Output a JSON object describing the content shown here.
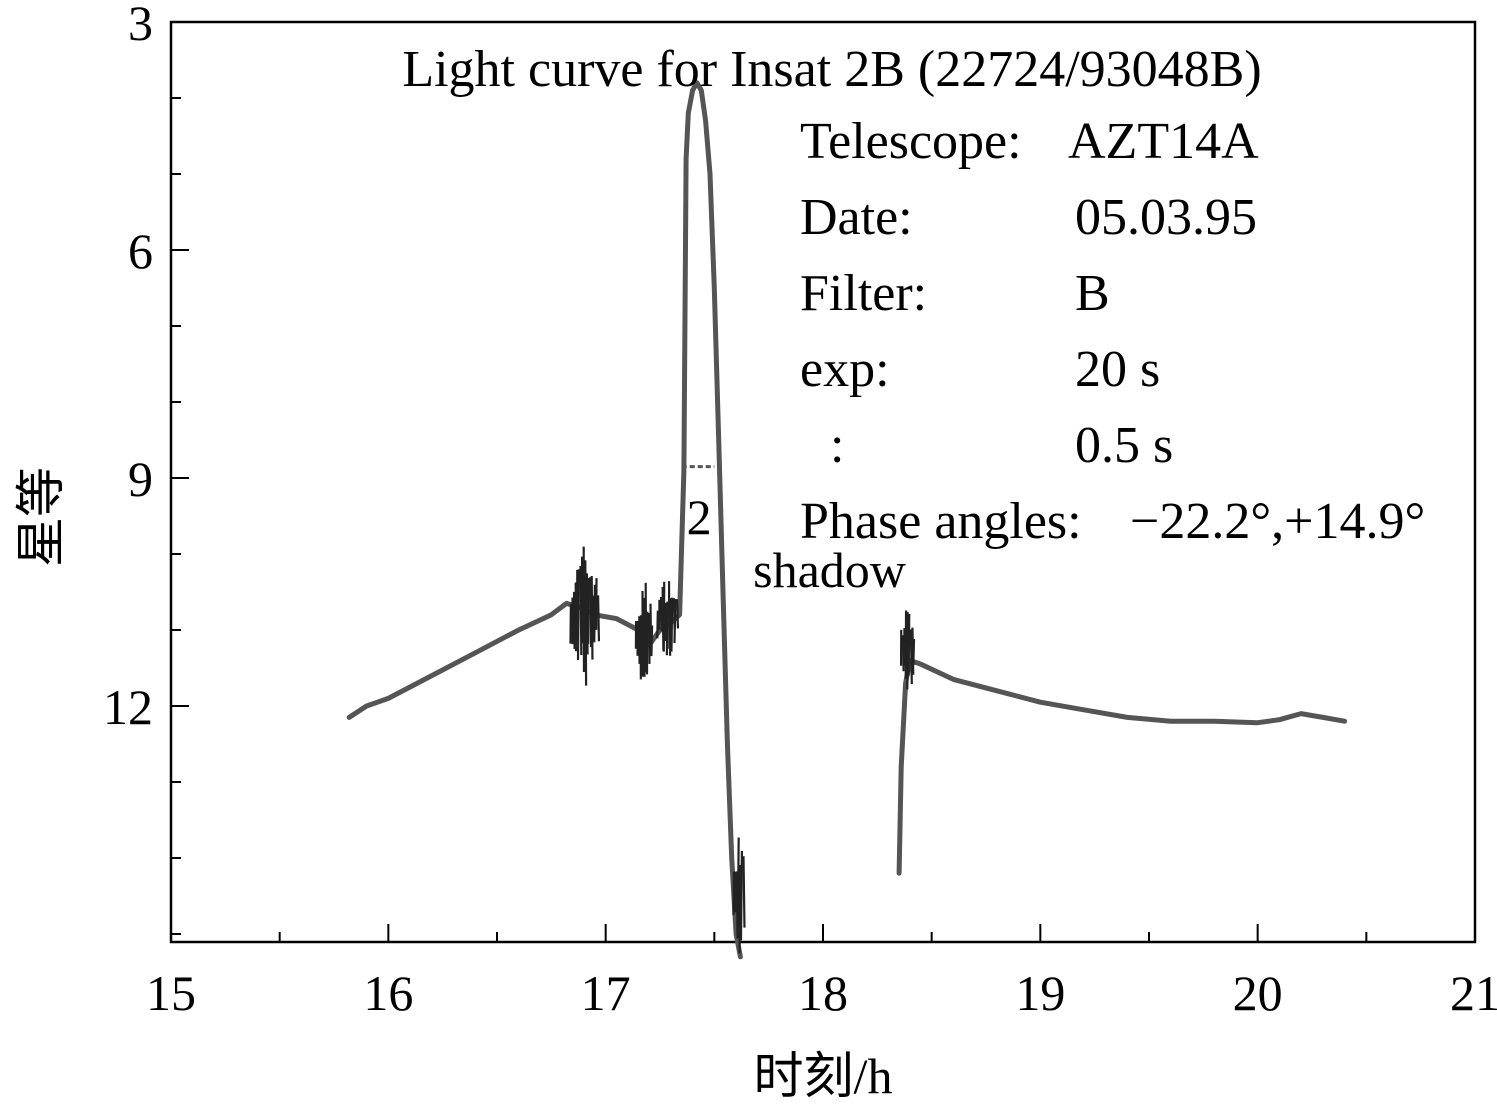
{
  "chart_data": {
    "type": "line",
    "title": "Light curve for Insat 2B (22724/93048B)",
    "xlabel": "时刻/h",
    "ylabel": "星等",
    "xlim": [
      15,
      21
    ],
    "ylim": [
      3,
      15.5
    ],
    "y_inverted": true,
    "x_ticks": [
      15,
      16,
      17,
      18,
      19,
      20,
      21
    ],
    "x_tick_labels": [
      "15",
      "16",
      "17",
      "18",
      "19",
      "20",
      "21"
    ],
    "y_ticks": [
      3,
      6,
      9,
      12
    ],
    "y_tick_labels": [
      "3",
      "6",
      "9",
      "12"
    ],
    "grid": false,
    "legend": "none",
    "info": [
      {
        "label": "Telescope:",
        "value": "AZT14A"
      },
      {
        "label": "Date:",
        "value": "05.03.95"
      },
      {
        "label": "Filter:",
        "value": "B"
      },
      {
        "label": "exp:",
        "value": "20 s"
      },
      {
        "label": ":",
        "value": "0.5 s"
      },
      {
        "label": "Phase angles:",
        "value": "−22.2°,+14.9°"
      }
    ],
    "annotations": [
      {
        "text": "2",
        "x": 17.43,
        "y": 9.5
      },
      {
        "text": "shadow",
        "x": 18.03,
        "y": 10.2
      }
    ],
    "marker_line": {
      "x": [
        17.35,
        17.5
      ],
      "y": 8.85
    },
    "series": [
      {
        "color": "#555555",
        "segments": [
          {
            "x": [
              15.82,
              15.9,
              16.0,
              16.2,
              16.4,
              16.6,
              16.75,
              16.82,
              16.88,
              16.95,
              17.05,
              17.15,
              17.2,
              17.25,
              17.3,
              17.34,
              17.36,
              17.37,
              17.38,
              17.4,
              17.42,
              17.44,
              17.46,
              17.48,
              17.5,
              17.52,
              17.54,
              17.56,
              17.58,
              17.6,
              17.62
            ],
            "y": [
              12.15,
              12.0,
              11.9,
              11.6,
              11.3,
              11.0,
              10.8,
              10.65,
              10.7,
              10.8,
              10.85,
              11.0,
              11.2,
              11.0,
              10.9,
              10.8,
              8.9,
              4.8,
              4.2,
              3.9,
              3.8,
              3.9,
              4.3,
              5.0,
              6.5,
              8.5,
              10.5,
              12.5,
              14.0,
              15.0,
              15.3
            ]
          },
          {
            "x": [
              18.35,
              18.36,
              18.38,
              18.4,
              18.45,
              18.6,
              18.8,
              19.0,
              19.2,
              19.4,
              19.6,
              19.8,
              20.0,
              20.1,
              20.2,
              20.3,
              20.4
            ],
            "y": [
              14.2,
              12.8,
              11.7,
              11.4,
              11.45,
              11.65,
              11.8,
              11.95,
              12.05,
              12.15,
              12.2,
              12.2,
              12.22,
              12.18,
              12.1,
              12.15,
              12.2
            ]
          }
        ]
      }
    ],
    "noise_bursts": [
      {
        "x0": 16.84,
        "x1": 16.97,
        "y_low": 9.8,
        "y_high": 11.8
      },
      {
        "x0": 17.14,
        "x1": 17.22,
        "y_low": 10.3,
        "y_high": 11.9
      },
      {
        "x0": 17.24,
        "x1": 17.33,
        "y_low": 10.2,
        "y_high": 11.5
      },
      {
        "x0": 17.59,
        "x1": 17.64,
        "y_low": 13.5,
        "y_high": 15.4
      },
      {
        "x0": 18.36,
        "x1": 18.42,
        "y_low": 10.6,
        "y_high": 11.9
      }
    ]
  }
}
